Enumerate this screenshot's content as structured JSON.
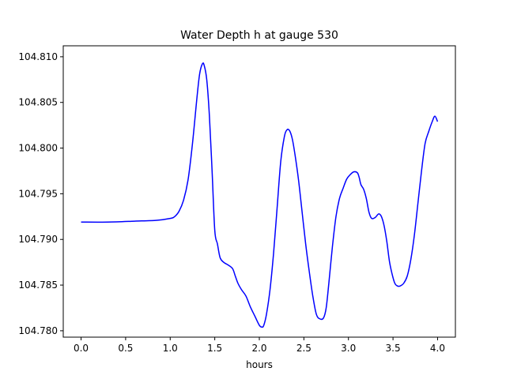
{
  "chart_data": {
    "type": "line",
    "title": "Water Depth h at gauge 530",
    "xlabel": "hours",
    "ylabel": "",
    "xlim": [
      -0.2,
      4.2
    ],
    "ylim": [
      104.7793,
      104.8112
    ],
    "xticks": [
      0.0,
      0.5,
      1.0,
      1.5,
      2.0,
      2.5,
      3.0,
      3.5,
      4.0
    ],
    "xtick_labels": [
      "0.0",
      "0.5",
      "1.0",
      "1.5",
      "2.0",
      "2.5",
      "3.0",
      "3.5",
      "4.0"
    ],
    "yticks": [
      104.78,
      104.785,
      104.79,
      104.795,
      104.8,
      104.805,
      104.81
    ],
    "ytick_labels": [
      "104.780",
      "104.785",
      "104.790",
      "104.795",
      "104.800",
      "104.805",
      "104.810"
    ],
    "grid": false,
    "series": [
      {
        "color": "#0000ff",
        "x": [
          0.0,
          0.3,
          0.6,
          0.85,
          1.0,
          1.05,
          1.1,
          1.15,
          1.2,
          1.25,
          1.3,
          1.33,
          1.36,
          1.38,
          1.41,
          1.44,
          1.47,
          1.5,
          1.53,
          1.56,
          1.6,
          1.65,
          1.7,
          1.73,
          1.76,
          1.8,
          1.85,
          1.9,
          1.95,
          2.0,
          2.03,
          2.05,
          2.08,
          2.12,
          2.16,
          2.2,
          2.24,
          2.28,
          2.31,
          2.34,
          2.37,
          2.4,
          2.44,
          2.48,
          2.52,
          2.56,
          2.6,
          2.64,
          2.68,
          2.72,
          2.75,
          2.78,
          2.82,
          2.86,
          2.9,
          2.94,
          2.98,
          3.02,
          3.06,
          3.1,
          3.12,
          3.14,
          3.17,
          3.2,
          3.23,
          3.26,
          3.3,
          3.34,
          3.37,
          3.4,
          3.43,
          3.46,
          3.49,
          3.52,
          3.55,
          3.58,
          3.62,
          3.66,
          3.7,
          3.74,
          3.78,
          3.82,
          3.86,
          3.9,
          3.94,
          3.97,
          4.0
        ],
        "y": [
          104.7919,
          104.7919,
          104.792,
          104.7921,
          104.7923,
          104.7925,
          104.7931,
          104.7943,
          104.7965,
          104.8005,
          104.8055,
          104.8081,
          104.8092,
          104.8091,
          104.8075,
          104.8035,
          104.7975,
          104.791,
          104.7895,
          104.788,
          104.7875,
          104.7872,
          104.7868,
          104.786,
          104.7852,
          104.7845,
          104.7838,
          104.7826,
          104.7816,
          104.7806,
          104.7804,
          104.7806,
          104.7818,
          104.7845,
          104.7885,
          104.7935,
          104.7985,
          104.8012,
          104.802,
          104.8019,
          104.801,
          104.7993,
          104.7965,
          104.793,
          104.7895,
          104.7865,
          104.7838,
          104.7818,
          104.7813,
          104.7814,
          104.7825,
          104.7852,
          104.7892,
          104.7925,
          104.7945,
          104.7956,
          104.7966,
          104.7971,
          104.7974,
          104.7973,
          104.7968,
          104.796,
          104.7955,
          104.7945,
          104.793,
          104.7923,
          104.7924,
          104.7928,
          104.7925,
          104.7915,
          104.7898,
          104.7876,
          104.7862,
          104.7852,
          104.7849,
          104.7849,
          104.7852,
          104.786,
          104.7878,
          104.7905,
          104.794,
          104.7975,
          104.8005,
          104.8018,
          104.8029,
          104.8035,
          104.8029
        ]
      }
    ]
  }
}
